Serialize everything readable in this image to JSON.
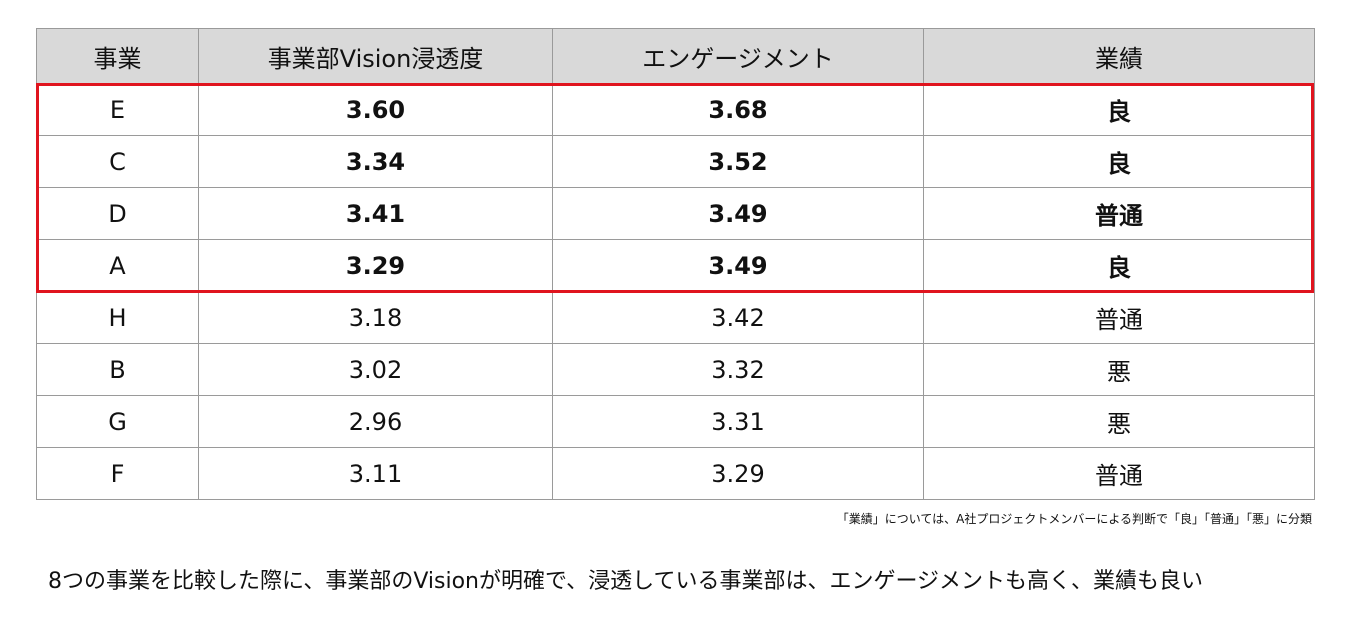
{
  "table": {
    "headers": [
      "事業",
      "事業部Vision浸透度",
      "エンゲージメント",
      "業績"
    ],
    "rows": [
      [
        "E",
        "3.60",
        "3.68",
        "良"
      ],
      [
        "C",
        "3.34",
        "3.52",
        "良"
      ],
      [
        "D",
        "3.41",
        "3.49",
        "普通"
      ],
      [
        "A",
        "3.29",
        "3.49",
        "良"
      ],
      [
        "H",
        "3.18",
        "3.42",
        "普通"
      ],
      [
        "B",
        "3.02",
        "3.32",
        "悪"
      ],
      [
        "G",
        "2.96",
        "3.31",
        "悪"
      ],
      [
        "F",
        "3.11",
        "3.29",
        "普通"
      ]
    ],
    "highlighted_row_count": 4,
    "highlight_color": "#e0141e",
    "header_bg": "#d9d9d9"
  },
  "footnote": "「業績」については、A社プロジェクトメンバーによる判断で「良」「普通」「悪」に分類",
  "conclusion": "8つの事業を比較した際に、事業部のVisionが明確で、浸透している事業部は、エンゲージメントも高く、業績も良い"
}
